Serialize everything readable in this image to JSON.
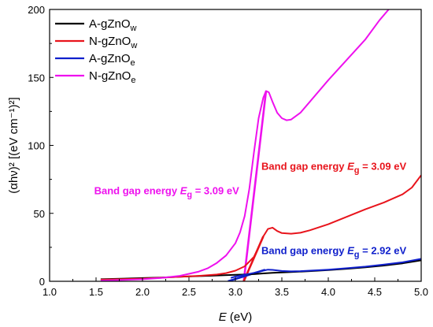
{
  "chart_data": {
    "type": "line",
    "xlabel": {
      "italic": "E",
      "rest": " (eV)"
    },
    "ylabel": "(αhν)² [(eV cm⁻¹)²]",
    "xlim": [
      1.0,
      5.0
    ],
    "ylim": [
      0,
      200
    ],
    "xticks": [
      1.0,
      1.5,
      2.0,
      2.5,
      3.0,
      3.5,
      4.0,
      4.5,
      5.0
    ],
    "yticks": [
      0,
      50,
      100,
      150,
      200
    ],
    "grid": false,
    "legend_position": "top-left",
    "series": [
      {
        "name": "A-gZnO",
        "name_sub": "w",
        "color": "#000000",
        "x": [
          1.55,
          1.8,
          2.0,
          2.2,
          2.4,
          2.6,
          2.8,
          3.0,
          3.1,
          3.2,
          3.3,
          3.4,
          3.5,
          3.6,
          3.8,
          4.0,
          4.2,
          4.4,
          4.6,
          4.8,
          5.0
        ],
        "y": [
          1.5,
          2.0,
          2.4,
          2.8,
          3.3,
          3.8,
          4.3,
          4.8,
          5.0,
          5.3,
          5.8,
          6.2,
          6.5,
          6.8,
          7.5,
          8.3,
          9.2,
          10.3,
          11.6,
          13.2,
          15.5
        ]
      },
      {
        "name": "N-gZnO",
        "name_sub": "w",
        "color": "#e8141c",
        "x": [
          1.55,
          1.8,
          2.0,
          2.2,
          2.4,
          2.6,
          2.8,
          2.9,
          3.0,
          3.1,
          3.2,
          3.25,
          3.3,
          3.35,
          3.4,
          3.45,
          3.5,
          3.6,
          3.7,
          3.8,
          4.0,
          4.2,
          4.4,
          4.6,
          4.8,
          4.9,
          5.0
        ],
        "y": [
          1.2,
          1.6,
          2.0,
          2.6,
          3.3,
          4.0,
          5.0,
          6.0,
          7.8,
          11.0,
          18.0,
          25.0,
          33.0,
          38.5,
          39.5,
          37.0,
          35.5,
          35.0,
          35.7,
          37.5,
          42.0,
          47.5,
          53.0,
          58.0,
          64.0,
          69.0,
          78.0
        ]
      },
      {
        "name": "A-gZnO",
        "name_sub": "e",
        "color": "#1020cc",
        "x": [
          2.95,
          3.0,
          3.1,
          3.2,
          3.3,
          3.35,
          3.4,
          3.5,
          3.6,
          3.7,
          3.8,
          4.0,
          4.2,
          4.4,
          4.6,
          4.8,
          5.0
        ],
        "y": [
          2.5,
          3.5,
          4.8,
          6.2,
          7.8,
          8.6,
          8.4,
          7.6,
          7.3,
          7.5,
          7.8,
          8.6,
          9.6,
          10.8,
          12.3,
          14.0,
          16.5
        ]
      },
      {
        "name": "N-gZnO",
        "name_sub": "e",
        "color": "#ee11ee",
        "x": [
          1.55,
          1.8,
          2.0,
          2.2,
          2.4,
          2.6,
          2.7,
          2.8,
          2.9,
          3.0,
          3.05,
          3.1,
          3.15,
          3.2,
          3.25,
          3.3,
          3.33,
          3.36,
          3.4,
          3.45,
          3.5,
          3.55,
          3.6,
          3.7,
          3.8,
          4.0,
          4.2,
          4.4,
          4.55,
          4.65
        ],
        "y": [
          0.5,
          1.0,
          1.5,
          2.5,
          4.0,
          7.0,
          9.5,
          13.5,
          19.0,
          28.0,
          36.0,
          48.0,
          68.0,
          95.0,
          120.0,
          135.0,
          140.0,
          139.0,
          132.0,
          124.0,
          120.0,
          118.5,
          119.0,
          124.0,
          132.0,
          148.0,
          163.0,
          178.0,
          192.0,
          200.0
        ]
      }
    ],
    "fit_lines": [
      {
        "color": "#ee11ee",
        "x": [
          3.09,
          3.33
        ],
        "y": [
          0,
          140
        ]
      },
      {
        "color": "#e8141c",
        "x": [
          3.09,
          3.3
        ],
        "y": [
          0,
          33
        ]
      },
      {
        "color": "#1020cc",
        "x": [
          2.92,
          3.32
        ],
        "y": [
          0,
          8.5
        ]
      }
    ],
    "annotations": [
      {
        "prefix": "Band gap energy ",
        "sym": "E",
        "sub": "g",
        "suffix": " = 3.09 eV",
        "color": "#ee11ee",
        "x": 1.48,
        "y": 64
      },
      {
        "prefix": "Band gap energy ",
        "sym": "E",
        "sub": "g",
        "suffix": " = 3.09 eV",
        "color": "#e8141c",
        "x": 3.28,
        "y": 82
      },
      {
        "prefix": "Band gap energy ",
        "sym": "E",
        "sub": "g",
        "suffix": " = 2.92 eV",
        "color": "#1020cc",
        "x": 3.28,
        "y": 20
      }
    ]
  }
}
